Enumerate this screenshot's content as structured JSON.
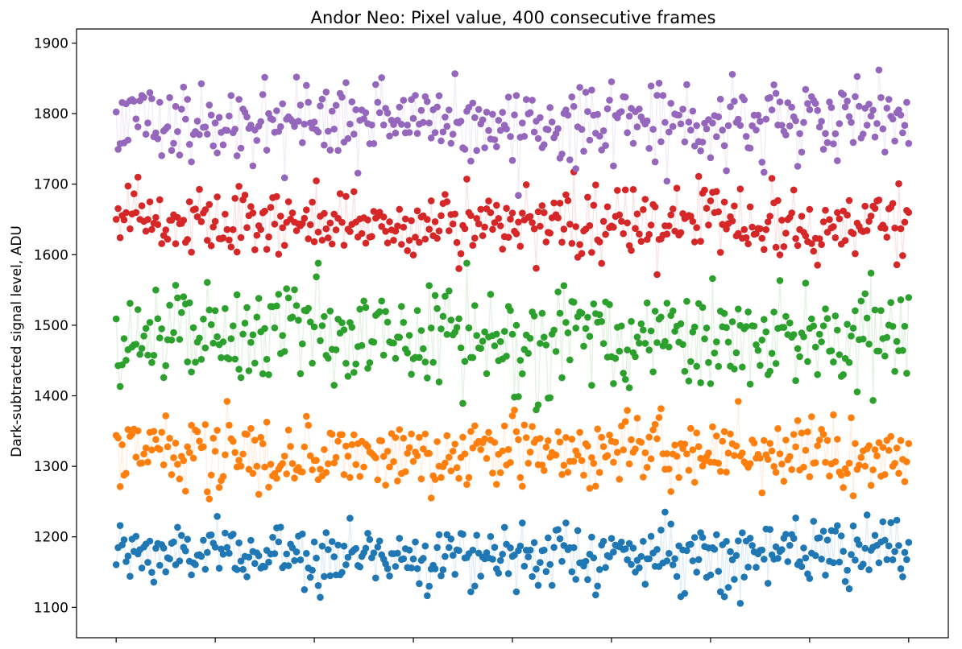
{
  "chart_data": {
    "type": "scatter",
    "title": "Andor Neo: Pixel value, 400 consecutive frames",
    "xlabel": "",
    "ylabel": "Dark-subtracted signal level, ADU",
    "x_ticks": [
      0,
      50,
      100,
      150,
      200,
      250,
      300,
      350,
      400
    ],
    "x_tick_labels_visible": false,
    "ylim": [
      1057,
      1920
    ],
    "xlim": [
      -20,
      420
    ],
    "y_ticks": [
      1100,
      1200,
      1300,
      1400,
      1500,
      1600,
      1700,
      1800,
      1900
    ],
    "grid": false,
    "legend": "none",
    "frames": 400,
    "series": [
      {
        "color": "#1f77b4",
        "mean": 1175,
        "sd": 22,
        "min": 1096,
        "max": 1237,
        "x_first": 0,
        "x_last": 400
      },
      {
        "color": "#ff7f0e",
        "mean": 1318,
        "sd": 25,
        "min": 1248,
        "max": 1392,
        "x_first": 0,
        "x_last": 400
      },
      {
        "color": "#2ca02c",
        "mean": 1480,
        "sd": 38,
        "min": 1373,
        "max": 1588,
        "x_first": 0,
        "x_last": 400
      },
      {
        "color": "#d62728",
        "mean": 1645,
        "sd": 25,
        "min": 1540,
        "max": 1753,
        "x_first": 0,
        "x_last": 400
      },
      {
        "color": "#9467bd",
        "mean": 1790,
        "sd": 30,
        "min": 1684,
        "max": 1880,
        "x_first": 0,
        "x_last": 400
      }
    ]
  }
}
